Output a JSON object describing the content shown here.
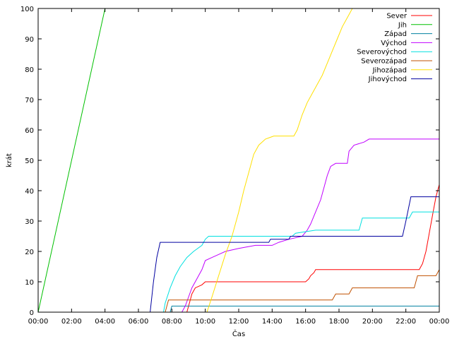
{
  "chart_data": {
    "type": "line",
    "xlabel": "Čas",
    "ylabel": "krát",
    "xlim": [
      0,
      24
    ],
    "ylim": [
      0,
      100
    ],
    "x_ticks": [
      0,
      2,
      4,
      6,
      8,
      10,
      12,
      14,
      16,
      18,
      20,
      22,
      24
    ],
    "x_tick_labels": [
      "00:00",
      "02:00",
      "04:00",
      "06:00",
      "08:00",
      "10:00",
      "12:00",
      "14:00",
      "16:00",
      "18:00",
      "20:00",
      "22:00",
      "00:00"
    ],
    "y_ticks": [
      0,
      10,
      20,
      30,
      40,
      50,
      60,
      70,
      80,
      90,
      100
    ],
    "y_tick_labels": [
      "0",
      "10",
      "20",
      "30",
      "40",
      "50",
      "60",
      "70",
      "80",
      "90",
      "100"
    ],
    "legend_position": "top-right",
    "grid": false,
    "series": [
      {
        "name": "Sever",
        "color": "#ff0000",
        "points": [
          [
            0,
            0
          ],
          [
            8.9,
            0
          ],
          [
            9.0,
            2
          ],
          [
            9.1,
            4
          ],
          [
            9.2,
            6
          ],
          [
            9.4,
            8
          ],
          [
            9.8,
            9
          ],
          [
            10.0,
            10
          ],
          [
            16.0,
            10
          ],
          [
            16.2,
            11
          ],
          [
            16.3,
            12
          ],
          [
            16.5,
            13
          ],
          [
            16.6,
            14
          ],
          [
            22.8,
            14
          ],
          [
            23.0,
            16
          ],
          [
            23.2,
            20
          ],
          [
            23.4,
            26
          ],
          [
            23.6,
            32
          ],
          [
            23.8,
            38
          ],
          [
            24,
            42
          ]
        ]
      },
      {
        "name": "Jih",
        "color": "#00c000",
        "points": [
          [
            0,
            0
          ],
          [
            4.0,
            100
          ],
          [
            24,
            100
          ]
        ]
      },
      {
        "name": "Západ",
        "color": "#0080a0",
        "points": [
          [
            0,
            0
          ],
          [
            7.9,
            0
          ],
          [
            8.0,
            2
          ],
          [
            24,
            2
          ]
        ]
      },
      {
        "name": "Východ",
        "color": "#c000ff",
        "points": [
          [
            0,
            0
          ],
          [
            8.6,
            0
          ],
          [
            8.8,
            2
          ],
          [
            9.0,
            5
          ],
          [
            9.2,
            8
          ],
          [
            9.5,
            11
          ],
          [
            9.8,
            14
          ],
          [
            10.0,
            17
          ],
          [
            10.4,
            18
          ],
          [
            10.8,
            19
          ],
          [
            11.2,
            20
          ],
          [
            12.0,
            21
          ],
          [
            13.0,
            22
          ],
          [
            14.0,
            22
          ],
          [
            14.4,
            23
          ],
          [
            15.0,
            24
          ],
          [
            15.8,
            25
          ],
          [
            16.1,
            27
          ],
          [
            16.3,
            29
          ],
          [
            16.6,
            33
          ],
          [
            16.9,
            37
          ],
          [
            17.1,
            41
          ],
          [
            17.3,
            45
          ],
          [
            17.5,
            48
          ],
          [
            17.8,
            49
          ],
          [
            18.5,
            49
          ],
          [
            18.6,
            53
          ],
          [
            18.9,
            55
          ],
          [
            19.5,
            56
          ],
          [
            19.8,
            57
          ],
          [
            24,
            57
          ]
        ]
      },
      {
        "name": "Severovýchod",
        "color": "#00e0e0",
        "points": [
          [
            0,
            0
          ],
          [
            7.5,
            0
          ],
          [
            7.6,
            3
          ],
          [
            7.9,
            8
          ],
          [
            8.2,
            12
          ],
          [
            8.5,
            15
          ],
          [
            8.9,
            18
          ],
          [
            9.3,
            20
          ],
          [
            9.8,
            22
          ],
          [
            10.0,
            24
          ],
          [
            10.2,
            25
          ],
          [
            15.2,
            25
          ],
          [
            15.4,
            26
          ],
          [
            16.6,
            27
          ],
          [
            19.2,
            27
          ],
          [
            19.4,
            31
          ],
          [
            22.2,
            31
          ],
          [
            22.4,
            33
          ],
          [
            24,
            33
          ]
        ]
      },
      {
        "name": "Severozápad",
        "color": "#c05000",
        "points": [
          [
            0,
            0
          ],
          [
            7.6,
            0
          ],
          [
            7.8,
            4
          ],
          [
            17.6,
            4
          ],
          [
            17.8,
            6
          ],
          [
            18.6,
            6
          ],
          [
            18.8,
            8
          ],
          [
            22.5,
            8
          ],
          [
            22.7,
            12
          ],
          [
            23.8,
            12
          ],
          [
            24,
            14
          ]
        ]
      },
      {
        "name": "Jihozápad",
        "color": "#ffe000",
        "points": [
          [
            0,
            0
          ],
          [
            10.1,
            0
          ],
          [
            10.4,
            5
          ],
          [
            10.8,
            12
          ],
          [
            11.2,
            19
          ],
          [
            11.6,
            25
          ],
          [
            12.0,
            33
          ],
          [
            12.3,
            40
          ],
          [
            12.6,
            46
          ],
          [
            12.9,
            52
          ],
          [
            13.2,
            55
          ],
          [
            13.6,
            57
          ],
          [
            14.1,
            58
          ],
          [
            15.3,
            58
          ],
          [
            15.5,
            60
          ],
          [
            15.8,
            65
          ],
          [
            16.1,
            69
          ],
          [
            16.4,
            72
          ],
          [
            16.7,
            75
          ],
          [
            17.0,
            78
          ],
          [
            17.3,
            82
          ],
          [
            17.6,
            86
          ],
          [
            17.9,
            90
          ],
          [
            18.2,
            94
          ],
          [
            18.6,
            98
          ],
          [
            18.8,
            100
          ],
          [
            24,
            100
          ]
        ]
      },
      {
        "name": "Jihovýchod",
        "color": "#0000a0",
        "points": [
          [
            0,
            0
          ],
          [
            6.7,
            0
          ],
          [
            6.9,
            10
          ],
          [
            7.1,
            18
          ],
          [
            7.3,
            23
          ],
          [
            13.8,
            23
          ],
          [
            13.9,
            24
          ],
          [
            15.0,
            24
          ],
          [
            15.1,
            25
          ],
          [
            21.8,
            25
          ],
          [
            22.0,
            30
          ],
          [
            22.3,
            38
          ],
          [
            24,
            38
          ]
        ]
      }
    ]
  }
}
